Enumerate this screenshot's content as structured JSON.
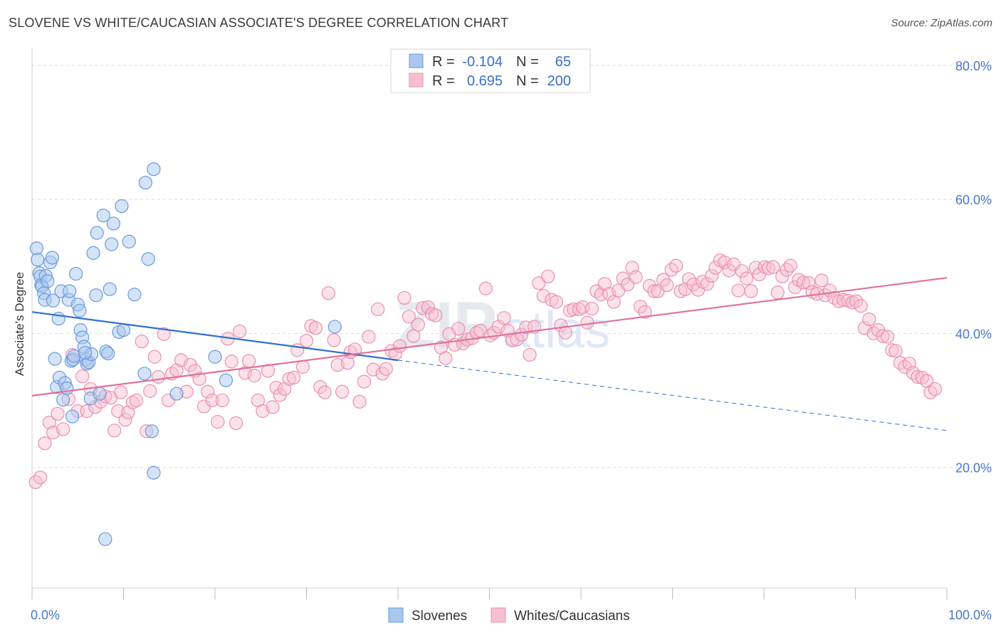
{
  "title": "SLOVENE VS WHITE/CAUCASIAN ASSOCIATE'S DEGREE CORRELATION CHART",
  "source": "Source: ZipAtlas.com",
  "colors": {
    "blue_fill": "#a9c7ef",
    "blue_stroke": "#6a9ad8",
    "blue_line": "#2f6fcf",
    "pink_fill": "#f6bfd0",
    "pink_stroke": "#ea8fae",
    "pink_line": "#e0709a",
    "grid": "#dddddd",
    "axis_text": "#4a78c8"
  },
  "legend": {
    "r_label": "R =",
    "n_label": "N =",
    "rows": [
      {
        "r": "-0.104",
        "n": "65"
      },
      {
        "r": "0.695",
        "n": "200"
      }
    ]
  },
  "watermark": {
    "zip": "ZIP",
    "atlas": "atlas"
  },
  "chart_data": {
    "type": "scatter",
    "title": "SLOVENE VS WHITE/CAUCASIAN ASSOCIATE'S DEGREE CORRELATION CHART",
    "xlabel": "",
    "ylabel": "Associate's Degree",
    "xlim": [
      0,
      100
    ],
    "ylim": [
      2,
      82
    ],
    "x_tick_labels": [
      "0.0%",
      "100.0%"
    ],
    "y_ticks": [
      20,
      40,
      60,
      80
    ],
    "y_tick_labels": [
      "20.0%",
      "40.0%",
      "60.0%",
      "80.0%"
    ],
    "grid": true,
    "legend_position": "top-center",
    "series": [
      {
        "name": "Slovenes",
        "r": -0.104,
        "n": 65,
        "trend": {
          "x0": 0,
          "y0": 43.2,
          "x1": 40,
          "y1": 36.0,
          "dash_to_x": 100,
          "dash_to_y": 25.5
        },
        "points": [
          [
            0.5,
            52.7
          ],
          [
            0.6,
            51.0
          ],
          [
            0.8,
            49.0
          ],
          [
            0.9,
            48.5
          ],
          [
            1.0,
            47.2
          ],
          [
            1.1,
            47.0
          ],
          [
            1.3,
            46.0
          ],
          [
            1.4,
            45.0
          ],
          [
            1.5,
            48.6
          ],
          [
            1.7,
            47.8
          ],
          [
            2.0,
            50.6
          ],
          [
            2.2,
            51.3
          ],
          [
            2.3,
            44.9
          ],
          [
            2.5,
            36.2
          ],
          [
            2.7,
            32.0
          ],
          [
            2.9,
            42.2
          ],
          [
            3.0,
            33.4
          ],
          [
            3.2,
            46.3
          ],
          [
            3.4,
            30.1
          ],
          [
            3.6,
            32.6
          ],
          [
            3.8,
            31.8
          ],
          [
            4.0,
            45.0
          ],
          [
            4.1,
            46.3
          ],
          [
            4.3,
            35.9
          ],
          [
            4.4,
            27.6
          ],
          [
            4.5,
            36.1
          ],
          [
            4.6,
            36.6
          ],
          [
            4.8,
            48.9
          ],
          [
            5.0,
            44.3
          ],
          [
            5.2,
            43.4
          ],
          [
            5.3,
            40.5
          ],
          [
            5.5,
            39.4
          ],
          [
            5.7,
            38.0
          ],
          [
            5.9,
            36.1
          ],
          [
            6.0,
            35.5
          ],
          [
            6.2,
            35.7
          ],
          [
            6.4,
            30.3
          ],
          [
            6.5,
            36.9
          ],
          [
            6.7,
            52.0
          ],
          [
            7.0,
            45.7
          ],
          [
            7.1,
            55.0
          ],
          [
            7.4,
            31.0
          ],
          [
            7.8,
            57.6
          ],
          [
            8.0,
            9.3
          ],
          [
            8.1,
            37.3
          ],
          [
            8.3,
            37.0
          ],
          [
            8.5,
            46.6
          ],
          [
            8.7,
            53.3
          ],
          [
            8.9,
            56.4
          ],
          [
            9.5,
            40.2
          ],
          [
            9.8,
            59.0
          ],
          [
            10.0,
            40.5
          ],
          [
            10.6,
            53.7
          ],
          [
            11.2,
            45.8
          ],
          [
            12.3,
            34.0
          ],
          [
            12.4,
            62.5
          ],
          [
            12.7,
            51.1
          ],
          [
            13.1,
            25.4
          ],
          [
            13.3,
            64.5
          ],
          [
            13.3,
            19.2
          ],
          [
            15.8,
            31.0
          ],
          [
            20.0,
            36.5
          ],
          [
            21.2,
            33.0
          ],
          [
            33.1,
            41.0
          ],
          [
            5.8,
            37.1
          ]
        ]
      },
      {
        "name": "Whites/Caucasians",
        "r": 0.695,
        "n": 200,
        "trend": {
          "x0": 0,
          "y0": 30.7,
          "x1": 100,
          "y1": 48.3
        },
        "points": [
          [
            0.4,
            17.8
          ],
          [
            0.9,
            18.5
          ],
          [
            1.4,
            23.6
          ],
          [
            1.9,
            26.7
          ],
          [
            2.3,
            25.2
          ],
          [
            2.8,
            28.0
          ],
          [
            3.4,
            25.7
          ],
          [
            4.0,
            30.2
          ],
          [
            4.4,
            36.8
          ],
          [
            5.0,
            28.4
          ],
          [
            5.5,
            33.6
          ],
          [
            6.0,
            28.4
          ],
          [
            6.4,
            31.7
          ],
          [
            6.9,
            29.0
          ],
          [
            7.5,
            29.8
          ],
          [
            8.0,
            30.6
          ],
          [
            8.6,
            30.4
          ],
          [
            9.0,
            25.5
          ],
          [
            9.4,
            28.4
          ],
          [
            9.7,
            31.2
          ],
          [
            10.2,
            27.1
          ],
          [
            10.5,
            28.2
          ],
          [
            11.0,
            29.7
          ],
          [
            11.4,
            30.0
          ],
          [
            12.0,
            38.8
          ],
          [
            12.5,
            25.4
          ],
          [
            12.9,
            31.4
          ],
          [
            13.4,
            36.5
          ],
          [
            13.8,
            33.5
          ],
          [
            14.4,
            39.9
          ],
          [
            14.9,
            30.0
          ],
          [
            15.3,
            34.0
          ],
          [
            15.8,
            34.5
          ],
          [
            16.3,
            36.0
          ],
          [
            16.9,
            31.3
          ],
          [
            17.3,
            35.3
          ],
          [
            17.8,
            34.4
          ],
          [
            18.3,
            33.2
          ],
          [
            18.8,
            29.1
          ],
          [
            19.2,
            31.3
          ],
          [
            19.7,
            30.0
          ],
          [
            20.3,
            26.8
          ],
          [
            20.8,
            30.0
          ],
          [
            21.4,
            39.2
          ],
          [
            21.8,
            35.8
          ],
          [
            22.3,
            26.6
          ],
          [
            22.7,
            40.3
          ],
          [
            23.3,
            34.1
          ],
          [
            23.7,
            35.9
          ],
          [
            24.3,
            33.7
          ],
          [
            24.7,
            30.0
          ],
          [
            25.2,
            28.4
          ],
          [
            25.8,
            34.4
          ],
          [
            26.3,
            29.0
          ],
          [
            26.7,
            31.9
          ],
          [
            27.1,
            30.8
          ],
          [
            27.6,
            31.7
          ],
          [
            28.1,
            33.2
          ],
          [
            28.6,
            33.4
          ],
          [
            29.0,
            37.5
          ],
          [
            29.6,
            35.0
          ],
          [
            30.0,
            38.9
          ],
          [
            30.5,
            41.1
          ],
          [
            31.0,
            40.8
          ],
          [
            31.5,
            32.0
          ],
          [
            32.0,
            31.2
          ],
          [
            32.4,
            46.0
          ],
          [
            33.0,
            39.0
          ],
          [
            33.4,
            35.3
          ],
          [
            33.9,
            31.3
          ],
          [
            34.5,
            35.6
          ],
          [
            34.8,
            37.2
          ],
          [
            35.3,
            37.6
          ],
          [
            35.8,
            29.8
          ],
          [
            36.3,
            32.8
          ],
          [
            36.8,
            39.5
          ],
          [
            37.3,
            34.6
          ],
          [
            37.8,
            43.6
          ],
          [
            38.3,
            34.0
          ],
          [
            38.7,
            34.7
          ],
          [
            39.3,
            37.4
          ],
          [
            39.7,
            36.9
          ],
          [
            40.2,
            38.1
          ],
          [
            40.7,
            45.3
          ],
          [
            41.2,
            42.5
          ],
          [
            41.7,
            39.6
          ],
          [
            42.2,
            41.3
          ],
          [
            42.7,
            43.8
          ],
          [
            43.3,
            43.9
          ],
          [
            43.7,
            42.9
          ],
          [
            44.1,
            42.7
          ],
          [
            44.7,
            37.9
          ],
          [
            45.2,
            36.3
          ],
          [
            45.6,
            39.9
          ],
          [
            46.2,
            38.3
          ],
          [
            46.6,
            40.7
          ],
          [
            47.1,
            38.5
          ],
          [
            47.6,
            39.1
          ],
          [
            48.1,
            39.3
          ],
          [
            48.6,
            40.1
          ],
          [
            49.0,
            40.4
          ],
          [
            49.6,
            46.7
          ],
          [
            50.1,
            39.7
          ],
          [
            50.5,
            40.1
          ],
          [
            51.0,
            41.0
          ],
          [
            51.6,
            42.3
          ],
          [
            52.0,
            40.4
          ],
          [
            52.5,
            39.0
          ],
          [
            53.0,
            39.1
          ],
          [
            53.5,
            39.8
          ],
          [
            54.0,
            40.9
          ],
          [
            54.4,
            36.8
          ],
          [
            54.9,
            41.0
          ],
          [
            55.4,
            47.5
          ],
          [
            55.9,
            45.6
          ],
          [
            56.4,
            48.5
          ],
          [
            56.8,
            45.0
          ],
          [
            57.3,
            44.7
          ],
          [
            57.8,
            41.2
          ],
          [
            58.3,
            40.1
          ],
          [
            58.8,
            43.4
          ],
          [
            59.2,
            43.6
          ],
          [
            59.8,
            43.6
          ],
          [
            60.2,
            43.9
          ],
          [
            60.7,
            41.6
          ],
          [
            61.2,
            43.7
          ],
          [
            61.7,
            46.3
          ],
          [
            62.2,
            45.8
          ],
          [
            62.6,
            47.4
          ],
          [
            63.1,
            45.9
          ],
          [
            63.6,
            44.7
          ],
          [
            64.1,
            46.4
          ],
          [
            64.6,
            48.2
          ],
          [
            65.1,
            47.3
          ],
          [
            65.6,
            49.8
          ],
          [
            66.0,
            48.4
          ],
          [
            66.5,
            44.0
          ],
          [
            67.0,
            43.2
          ],
          [
            67.5,
            47.1
          ],
          [
            68.0,
            46.3
          ],
          [
            68.4,
            46.3
          ],
          [
            69.0,
            48.0
          ],
          [
            69.4,
            47.2
          ],
          [
            69.9,
            49.5
          ],
          [
            70.4,
            50.1
          ],
          [
            70.9,
            46.3
          ],
          [
            71.4,
            46.6
          ],
          [
            71.8,
            48.1
          ],
          [
            72.3,
            47.3
          ],
          [
            72.8,
            46.5
          ],
          [
            73.3,
            47.7
          ],
          [
            73.8,
            47.4
          ],
          [
            74.3,
            48.6
          ],
          [
            74.7,
            49.8
          ],
          [
            75.2,
            50.9
          ],
          [
            75.7,
            50.6
          ],
          [
            76.2,
            49.4
          ],
          [
            76.7,
            50.3
          ],
          [
            77.2,
            46.4
          ],
          [
            77.6,
            49.3
          ],
          [
            78.1,
            48.2
          ],
          [
            78.6,
            46.3
          ],
          [
            79.1,
            49.8
          ],
          [
            79.5,
            48.8
          ],
          [
            80.1,
            49.9
          ],
          [
            80.5,
            49.7
          ],
          [
            81.0,
            49.9
          ],
          [
            81.5,
            46.1
          ],
          [
            82.0,
            48.5
          ],
          [
            82.5,
            49.5
          ],
          [
            82.9,
            50.1
          ],
          [
            83.4,
            46.9
          ],
          [
            83.8,
            48.0
          ],
          [
            84.3,
            47.6
          ],
          [
            84.9,
            47.5
          ],
          [
            85.3,
            46.2
          ],
          [
            85.8,
            45.9
          ],
          [
            86.3,
            47.9
          ],
          [
            86.7,
            45.7
          ],
          [
            87.2,
            46.4
          ],
          [
            87.7,
            45.3
          ],
          [
            88.2,
            44.8
          ],
          [
            88.7,
            45.0
          ],
          [
            89.2,
            44.9
          ],
          [
            89.7,
            44.6
          ],
          [
            90.1,
            44.8
          ],
          [
            90.6,
            44.1
          ],
          [
            91.0,
            40.8
          ],
          [
            91.5,
            42.1
          ],
          [
            92.0,
            40.0
          ],
          [
            92.5,
            40.5
          ],
          [
            93.0,
            39.6
          ],
          [
            93.5,
            39.5
          ],
          [
            94.0,
            37.5
          ],
          [
            94.4,
            37.4
          ],
          [
            94.9,
            35.6
          ],
          [
            95.4,
            35.0
          ],
          [
            95.9,
            35.5
          ],
          [
            96.3,
            34.1
          ],
          [
            96.8,
            33.5
          ],
          [
            97.3,
            33.4
          ],
          [
            97.8,
            32.9
          ],
          [
            98.2,
            31.2
          ],
          [
            98.7,
            31.7
          ]
        ]
      }
    ]
  }
}
